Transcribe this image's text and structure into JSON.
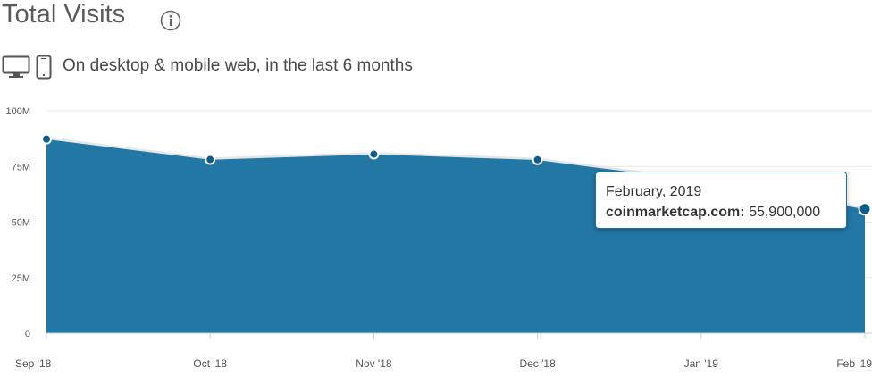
{
  "header": {
    "title": "Total Visits",
    "info_icon": "info-circle-icon",
    "desktop_icon": "desktop-monitor-icon",
    "mobile_icon": "mobile-phone-icon",
    "subtitle": "On desktop & mobile web, in the last 6 months"
  },
  "colors": {
    "area_fill": "#2277a5",
    "line": "#e6e6e6",
    "point": "#0f5b8a",
    "grid": "#e8e8e8",
    "tooltip_border": "#1f6f9f"
  },
  "tooltip": {
    "date": "February, 2019",
    "site": "coinmarketcap.com:",
    "value": "55,900,000"
  },
  "chart_data": {
    "type": "area",
    "categories": [
      "Sep '18",
      "Oct '18",
      "Nov '18",
      "Dec '18",
      "Jan '19",
      "Feb '19"
    ],
    "y_tick_labels": [
      "0",
      "25M",
      "50M",
      "75M",
      "100M"
    ],
    "y_ticks": [
      0,
      25000000,
      50000000,
      75000000,
      100000000
    ],
    "ylim": [
      0,
      100000000
    ],
    "series": [
      {
        "values": [
          87300000,
          78100000,
          80500000,
          78000000,
          68500000,
          55900000
        ]
      }
    ],
    "highlighted_index": 5,
    "grid": true,
    "legend": "none"
  }
}
